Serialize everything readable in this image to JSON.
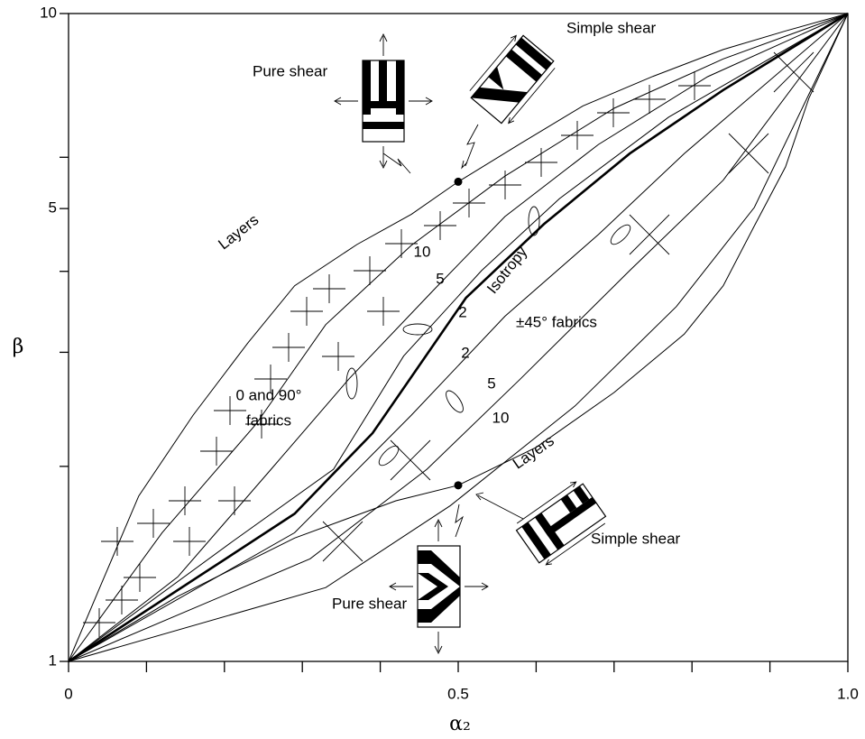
{
  "chart_data": {
    "type": "line",
    "x_label": "α₂",
    "y_label": "β",
    "xlim": [
      0,
      1
    ],
    "ylim": [
      1,
      10
    ],
    "y_log": true,
    "xticks": [
      0,
      0.5,
      {
        "value": 1,
        "label": "1.0"
      }
    ],
    "xminorticks": [
      0.1,
      0.2,
      0.3,
      0.4,
      0.6,
      0.7,
      0.8,
      0.9
    ],
    "yticks": [
      1,
      5,
      10
    ],
    "yminorticks": [
      2,
      3,
      4,
      6
    ],
    "series": [
      {
        "label": "Layers",
        "color": "#000000",
        "x": [
          0,
          0.04,
          0.09,
          0.16,
          0.23,
          0.29,
          0.37,
          0.44,
          0.5,
          0.58,
          0.66,
          0.75,
          0.84,
          0.92,
          1
        ],
        "y": [
          1,
          1.3,
          1.8,
          2.4,
          3.1,
          3.8,
          4.4,
          4.9,
          5.5,
          6.3,
          7.2,
          8.0,
          8.8,
          9.4,
          10
        ]
      },
      {
        "label": "10",
        "color": "#000000",
        "x": [
          0,
          0.12,
          0.24,
          0.33,
          0.44,
          0.56,
          0.7,
          0.84,
          1
        ],
        "y": [
          1,
          1.58,
          2.32,
          3.31,
          4.39,
          5.61,
          7.14,
          8.51,
          10
        ]
      },
      {
        "label": "5",
        "color": "#000000",
        "x": [
          0,
          0.14,
          0.26,
          0.36,
          0.47,
          0.56,
          0.68,
          0.82,
          1
        ],
        "y": [
          1,
          1.35,
          1.98,
          2.73,
          3.76,
          4.86,
          6.28,
          7.99,
          10
        ]
      },
      {
        "label": "2",
        "color": "#000000",
        "x": [
          0,
          0.21,
          0.34,
          0.43,
          0.53,
          0.63,
          0.77,
          1
        ],
        "y": [
          1,
          1.53,
          1.98,
          2.96,
          4.01,
          5.18,
          6.92,
          10
        ]
      },
      {
        "label": "Isotropy",
        "color": "#000000",
        "x": [
          0,
          0.29,
          0.39,
          0.51,
          0.61,
          0.72,
          0.84,
          1
        ],
        "y": [
          1,
          1.69,
          2.25,
          3.64,
          4.73,
          6.08,
          7.62,
          10
        ]
      },
      {
        "label": "2",
        "color": "#000000",
        "x": [
          0,
          0.29,
          0.44,
          0.56,
          0.68,
          0.79,
          1
        ],
        "y": [
          1,
          1.58,
          2.4,
          3.41,
          4.56,
          6.08,
          10
        ]
      },
      {
        "label": "5",
        "color": "#000000",
        "x": [
          0,
          0.31,
          0.46,
          0.58,
          0.72,
          0.84,
          1
        ],
        "y": [
          1,
          1.44,
          1.98,
          2.73,
          4.01,
          5.53,
          10
        ]
      },
      {
        "label": "10",
        "color": "#000000",
        "x": [
          0,
          0.33,
          0.49,
          0.65,
          0.78,
          0.88,
          1
        ],
        "y": [
          1,
          1.3,
          1.74,
          2.48,
          3.53,
          5.02,
          10
        ]
      },
      {
        "label": "Layers",
        "color": "#000000",
        "x": [
          0,
          0.14,
          0.29,
          0.42,
          0.5,
          0.6,
          0.7,
          0.79,
          0.84,
          0.88,
          0.92,
          0.95,
          1
        ],
        "y": [
          1,
          1.26,
          1.55,
          1.77,
          1.87,
          2.14,
          2.6,
          3.2,
          3.8,
          4.7,
          5.8,
          7.4,
          10
        ]
      }
    ],
    "points": [
      {
        "x": 0.5,
        "y": 5.5
      },
      {
        "x": 0.5,
        "y": 1.87
      }
    ],
    "annotations": [
      "0 and 90°",
      "fabrics",
      "±45°  fabrics",
      "Pure shear",
      "Simple shear",
      "Pure shear",
      "Simple shear"
    ]
  }
}
